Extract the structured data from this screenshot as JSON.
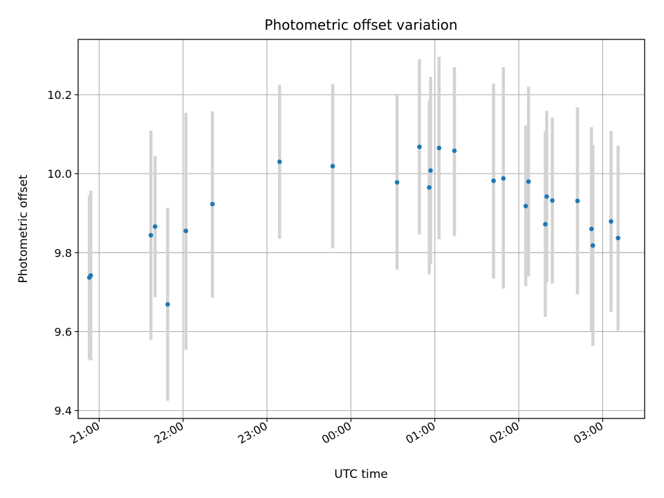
{
  "chart_data": {
    "type": "scatter",
    "title": "Photometric offset variation",
    "xlabel": "UTC time",
    "ylabel": "Photometric offset",
    "xlim": [
      "20:45",
      "03:30"
    ],
    "ylim": [
      9.38,
      10.34
    ],
    "grid": true,
    "x_ticks": [
      "21:00",
      "22:00",
      "23:00",
      "00:00",
      "01:00",
      "02:00",
      "03:00"
    ],
    "y_ticks": [
      "9.4",
      "9.6",
      "9.8",
      "10.0",
      "10.2"
    ],
    "colors": {
      "points": "#1f77b4",
      "error_bars": "#d3d3d3",
      "grid": "#b0b0b0"
    },
    "series": [
      {
        "points": [
          {
            "x": "20:53",
            "y": 9.737,
            "err_low": 9.53,
            "err_high": 9.945
          },
          {
            "x": "20:54",
            "y": 9.742,
            "err_low": 9.527,
            "err_high": 9.957
          },
          {
            "x": "21:37",
            "y": 9.844,
            "err_low": 9.579,
            "err_high": 10.109
          },
          {
            "x": "21:40",
            "y": 9.866,
            "err_low": 9.687,
            "err_high": 10.045
          },
          {
            "x": "21:49",
            "y": 9.669,
            "err_low": 9.425,
            "err_high": 9.913
          },
          {
            "x": "22:02",
            "y": 9.855,
            "err_low": 9.554,
            "err_high": 10.154
          },
          {
            "x": "22:21",
            "y": 9.923,
            "err_low": 9.686,
            "err_high": 10.158
          },
          {
            "x": "23:09",
            "y": 10.03,
            "err_low": 9.835,
            "err_high": 10.225
          },
          {
            "x": "23:47",
            "y": 10.019,
            "err_low": 9.811,
            "err_high": 10.227
          },
          {
            "x": "00:33",
            "y": 9.978,
            "err_low": 9.757,
            "err_high": 10.2
          },
          {
            "x": "00:49",
            "y": 10.068,
            "err_low": 9.846,
            "err_high": 10.29
          },
          {
            "x": "00:56",
            "y": 9.965,
            "err_low": 9.745,
            "err_high": 10.185
          },
          {
            "x": "00:57",
            "y": 10.008,
            "err_low": 9.771,
            "err_high": 10.245
          },
          {
            "x": "01:03",
            "y": 10.065,
            "err_low": 9.834,
            "err_high": 10.296
          },
          {
            "x": "01:14",
            "y": 10.058,
            "err_low": 9.842,
            "err_high": 10.27
          },
          {
            "x": "01:42",
            "y": 9.982,
            "err_low": 9.734,
            "err_high": 10.228
          },
          {
            "x": "01:49",
            "y": 9.988,
            "err_low": 9.709,
            "err_high": 10.27
          },
          {
            "x": "02:05",
            "y": 9.918,
            "err_low": 9.715,
            "err_high": 10.122
          },
          {
            "x": "02:07",
            "y": 9.98,
            "err_low": 9.74,
            "err_high": 10.22
          },
          {
            "x": "02:19",
            "y": 9.872,
            "err_low": 9.637,
            "err_high": 10.107
          },
          {
            "x": "02:20",
            "y": 9.942,
            "err_low": 9.725,
            "err_high": 10.159
          },
          {
            "x": "02:24",
            "y": 9.932,
            "err_low": 9.722,
            "err_high": 10.142
          },
          {
            "x": "02:42",
            "y": 9.931,
            "err_low": 9.694,
            "err_high": 10.168
          },
          {
            "x": "02:52",
            "y": 9.86,
            "err_low": 9.601,
            "err_high": 10.118
          },
          {
            "x": "02:53",
            "y": 9.818,
            "err_low": 9.564,
            "err_high": 10.072
          },
          {
            "x": "03:06",
            "y": 9.879,
            "err_low": 9.65,
            "err_high": 10.108
          },
          {
            "x": "03:11",
            "y": 9.837,
            "err_low": 9.603,
            "err_high": 10.071
          }
        ]
      }
    ]
  }
}
